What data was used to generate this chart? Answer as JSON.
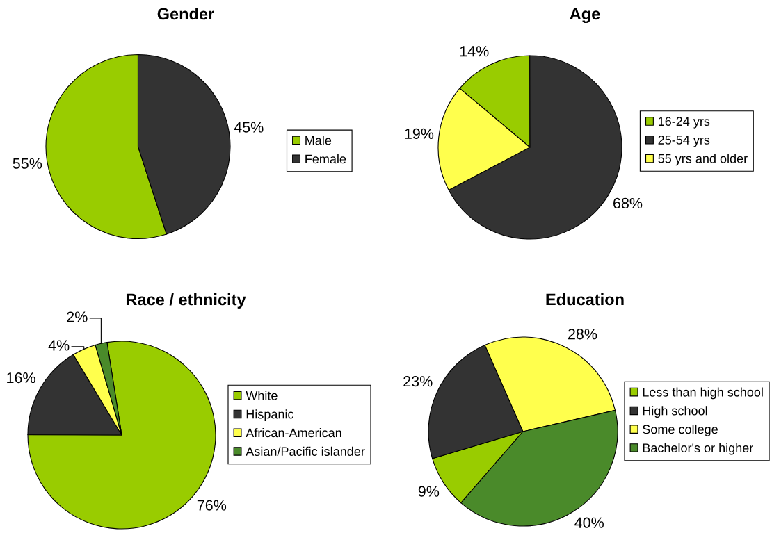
{
  "chart_data": [
    {
      "type": "pie",
      "title": "Gender",
      "categories": [
        "Male",
        "Female"
      ],
      "values": [
        55,
        45
      ],
      "colors": [
        "#99cc00",
        "#333333"
      ],
      "value_labels": [
        "55%",
        "45%"
      ],
      "legend": "right"
    },
    {
      "type": "pie",
      "title": "Age",
      "categories": [
        "16-24 yrs",
        "25-54 yrs",
        "55 yrs and older"
      ],
      "values": [
        14,
        68,
        19
      ],
      "colors": [
        "#99cc00",
        "#333333",
        "#ffff4d"
      ],
      "value_labels": [
        "14%",
        "68%",
        "19%"
      ],
      "legend": "right"
    },
    {
      "type": "pie",
      "title": "Race / ethnicity",
      "categories": [
        "White",
        "Hispanic",
        "African-American",
        "Asian/Pacific islander"
      ],
      "values": [
        76,
        16,
        4,
        2
      ],
      "colors": [
        "#99cc00",
        "#333333",
        "#ffff4d",
        "#4a8a2a"
      ],
      "value_labels": [
        "76%",
        "16%",
        "4%",
        "2%"
      ],
      "legend": "right"
    },
    {
      "type": "pie",
      "title": "Education",
      "categories": [
        "Less than high school",
        "High school",
        "Some college",
        "Bachelor's or higher"
      ],
      "values": [
        9,
        23,
        28,
        40
      ],
      "colors": [
        "#99cc00",
        "#333333",
        "#ffff4d",
        "#4a8a2a"
      ],
      "value_labels": [
        "9%",
        "23%",
        "28%",
        "40%"
      ],
      "legend": "right"
    }
  ]
}
